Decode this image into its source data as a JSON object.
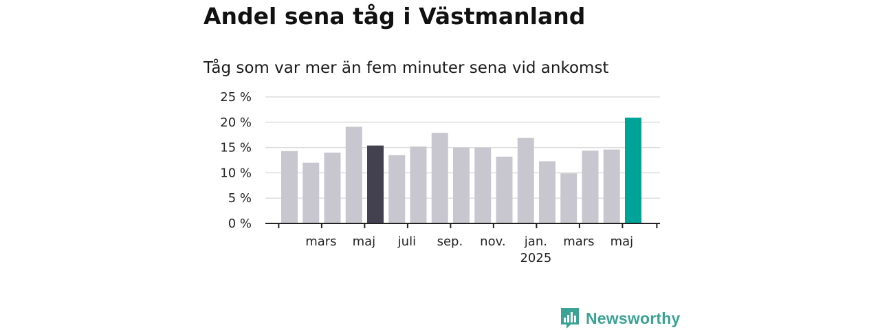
{
  "title": "Andel sena tåg i Västmanland",
  "subtitle": "Tåg som var mer än fem minuter sena vid ankomst",
  "brand": {
    "name": "Newsworthy"
  },
  "colors": {
    "bar_default": "#c8c7cf",
    "bar_highlight_dark": "#43414f",
    "bar_highlight_latest": "#00a398",
    "grid": "#dddddd",
    "axis": "#222222",
    "brand": "#3aa393"
  },
  "chart_data": {
    "type": "bar",
    "title": "Tåg som var mer än fem minuter sena vid ankomst",
    "xlabel": "",
    "ylabel": "",
    "ylim": [
      0,
      25
    ],
    "y_ticks": [
      "0 %",
      "5 %",
      "10 %",
      "15 %",
      "20 %",
      "25 %"
    ],
    "y_tick_values": [
      0,
      5,
      10,
      15,
      20,
      25
    ],
    "grid": true,
    "x_tick_labels": [
      {
        "label": "mars",
        "sublabel": "",
        "index": 1.5
      },
      {
        "label": "maj",
        "sublabel": "",
        "index": 3.5
      },
      {
        "label": "juli",
        "sublabel": "",
        "index": 5.5
      },
      {
        "label": "sep.",
        "sublabel": "",
        "index": 7.5
      },
      {
        "label": "nov.",
        "sublabel": "",
        "index": 9.5
      },
      {
        "label": "jan.",
        "sublabel": "2025",
        "index": 11.5
      },
      {
        "label": "mars",
        "sublabel": "",
        "index": 13.5
      },
      {
        "label": "maj",
        "sublabel": "",
        "index": 15.5
      }
    ],
    "series": [
      {
        "values": [
          14.3,
          12.0,
          14.0,
          19.1,
          15.4,
          13.5,
          15.2,
          17.9,
          15.0,
          15.0,
          13.2,
          16.9,
          12.3,
          9.9,
          14.4,
          14.6,
          20.9
        ],
        "highlight": [
          "default",
          "default",
          "default",
          "default",
          "dark",
          "default",
          "default",
          "default",
          "default",
          "default",
          "default",
          "default",
          "default",
          "default",
          "default",
          "default",
          "latest"
        ]
      }
    ]
  }
}
